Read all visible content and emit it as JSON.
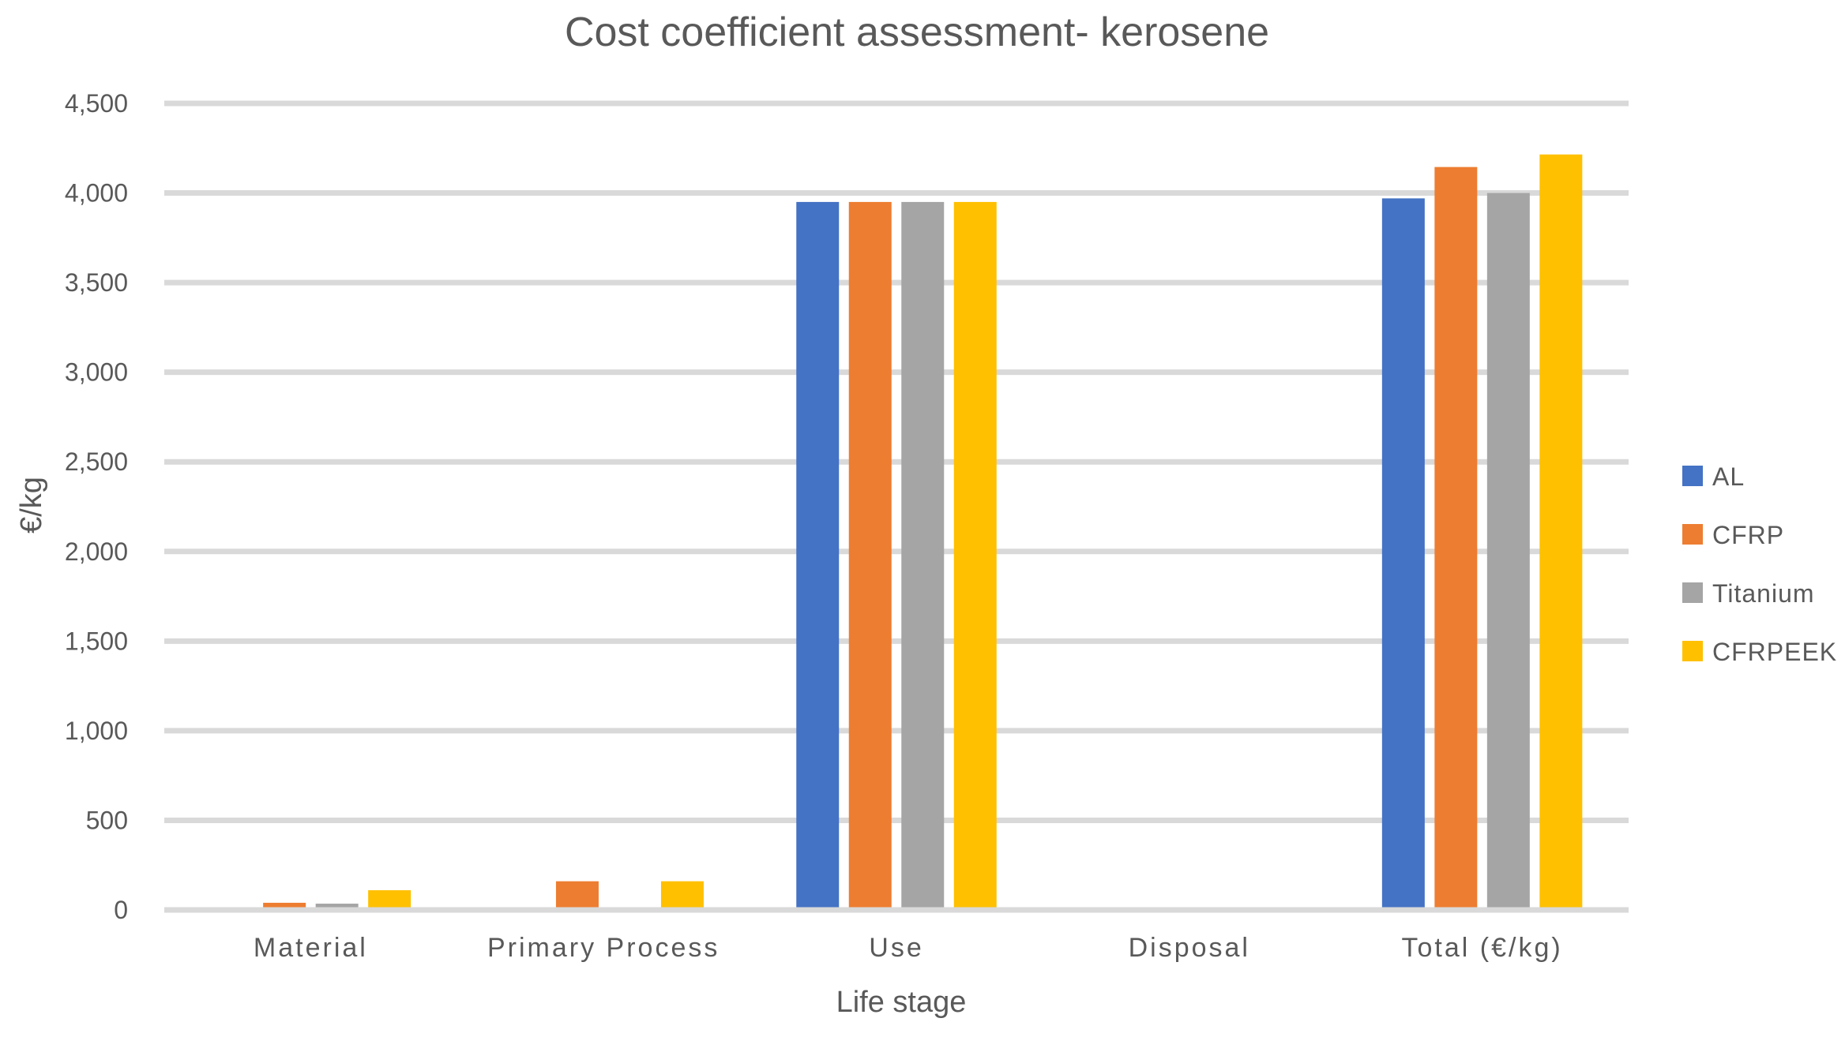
{
  "chart_data": {
    "type": "bar",
    "title": "Cost coefficient assessment- kerosene",
    "xlabel": "Life stage",
    "ylabel": "€/kg",
    "ylim": [
      0,
      4500
    ],
    "ytick_step": 500,
    "ytick_labels": [
      "0",
      "500",
      "1,000",
      "1,500",
      "2,000",
      "2,500",
      "3,000",
      "3,500",
      "4,000",
      "4,500"
    ],
    "grid": true,
    "legend_position": "right",
    "categories": [
      "Material",
      "Primary Process",
      "Use",
      "Disposal",
      "Total  (€/kg)"
    ],
    "series": [
      {
        "name": "AL",
        "color": "#4472C4",
        "values": [
          5,
          0,
          3950,
          0,
          3970
        ]
      },
      {
        "name": "CFRP",
        "color": "#ED7D31",
        "values": [
          40,
          160,
          3950,
          0,
          4145
        ]
      },
      {
        "name": "Titanium",
        "color": "#A5A5A5",
        "values": [
          35,
          0,
          3950,
          0,
          4000
        ]
      },
      {
        "name": "CFRPEEK",
        "color": "#FFC000",
        "values": [
          110,
          160,
          3950,
          0,
          4215
        ]
      }
    ]
  }
}
